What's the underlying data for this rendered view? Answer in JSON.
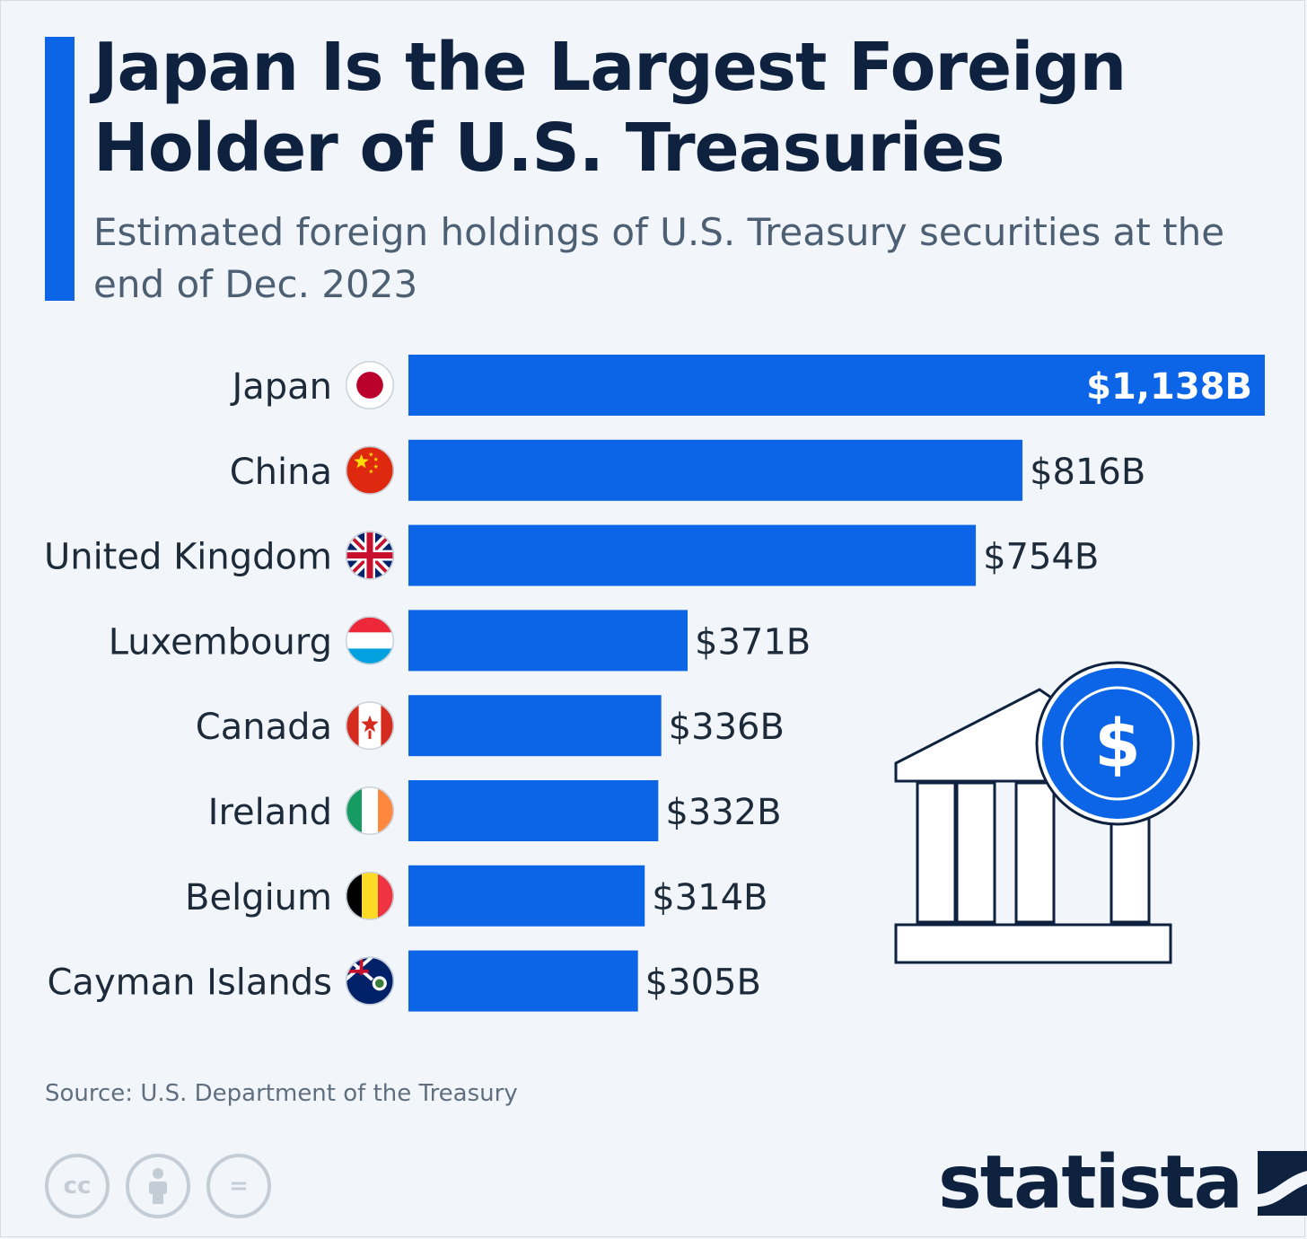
{
  "title": "Japan Is the Largest Foreign Holder of U.S. Treasuries",
  "subtitle": "Estimated foreign holdings of U.S. Treasury securities at the end of Dec. 2023",
  "source": "Source: U.S. Department of the Treasury",
  "brand": "statista",
  "colors": {
    "bar": "#0b65e6",
    "title": "#0e2240",
    "subtitle": "#4d5f73",
    "accent": "#0b65e6"
  },
  "icons": {
    "license": [
      "cc-icon",
      "attribution-icon",
      "no-derivatives-icon"
    ],
    "illustration": "bank-dollar-icon"
  },
  "license_text": {
    "cc": "cc",
    "nd": "="
  },
  "dollar_sign": "$",
  "chart_data": {
    "type": "bar",
    "orientation": "horizontal",
    "categories": [
      "Japan",
      "China",
      "United Kingdom",
      "Luxembourg",
      "Canada",
      "Ireland",
      "Belgium",
      "Cayman Islands"
    ],
    "values": [
      1138,
      816,
      754,
      371,
      336,
      332,
      314,
      305
    ],
    "value_labels": [
      "$1,138B",
      "$816B",
      "$754B",
      "$371B",
      "$336B",
      "$332B",
      "$314B",
      "$305B"
    ],
    "flags": [
      "japan-flag-icon",
      "china-flag-icon",
      "uk-flag-icon",
      "luxembourg-flag-icon",
      "canada-flag-icon",
      "ireland-flag-icon",
      "belgium-flag-icon",
      "cayman-islands-flag-icon"
    ],
    "unit": "billion USD",
    "xlim": [
      0,
      1138
    ],
    "grid": false
  }
}
